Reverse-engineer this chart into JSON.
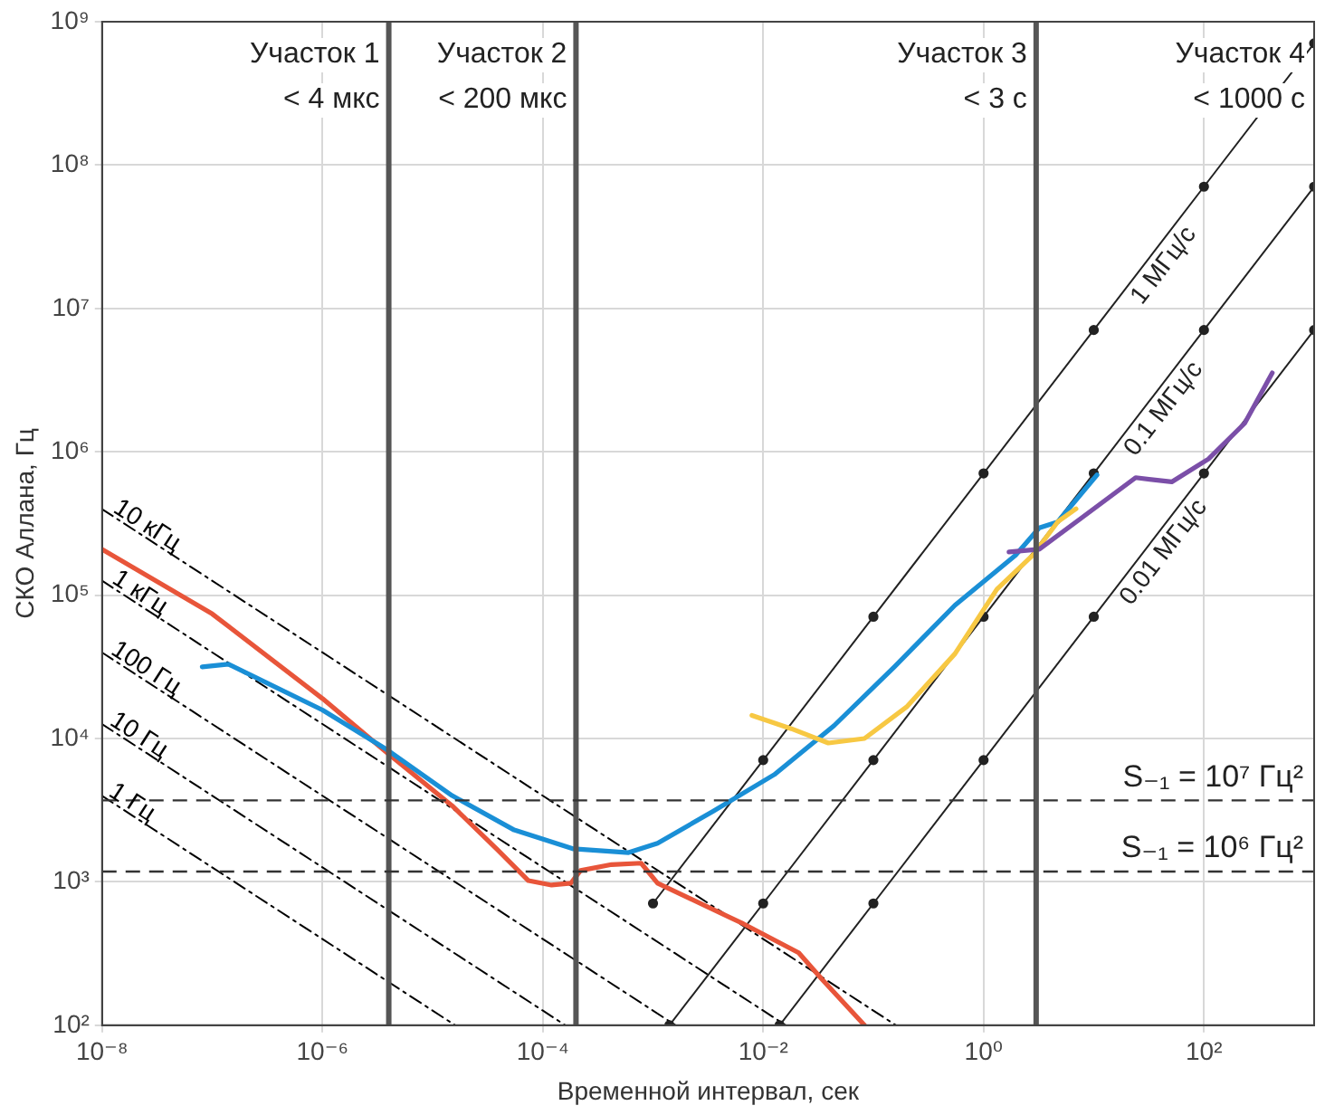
{
  "chart_data": {
    "type": "line",
    "xlabel": "Временной интервал, сек",
    "ylabel": "СКО Аллана, Гц",
    "log": "xy",
    "grid": true,
    "legend": false,
    "xlim": [
      1e-08,
      1000
    ],
    "ylim": [
      100,
      1000000000
    ],
    "xticks": [
      {
        "value": 1e-08,
        "label": "10⁻⁸"
      },
      {
        "value": 1e-06,
        "label": "10⁻⁶"
      },
      {
        "value": 0.0001,
        "label": "10⁻⁴"
      },
      {
        "value": 0.01,
        "label": "10⁻²"
      },
      {
        "value": 1,
        "label": "10⁰"
      },
      {
        "value": 100,
        "label": "10²"
      }
    ],
    "yticks": [
      {
        "value": 100,
        "label": "10²"
      },
      {
        "value": 1000,
        "label": "10³"
      },
      {
        "value": 10000,
        "label": "10⁴"
      },
      {
        "value": 100000,
        "label": "10⁵"
      },
      {
        "value": 1000000,
        "label": "10⁶"
      },
      {
        "value": 10000000,
        "label": "10⁷"
      },
      {
        "value": 100000000,
        "label": "10⁸"
      },
      {
        "value": 1000000000,
        "label": "10⁹"
      }
    ],
    "series": [
      {
        "name": "10 кГц",
        "color": "#000000",
        "line_style": "dashdot",
        "marker": "none",
        "x": [
          1e-08,
          0.16
        ],
        "values": [
          398000,
          100
        ]
      },
      {
        "name": "1 кГц",
        "color": "#000000",
        "line_style": "dashdot",
        "marker": "none",
        "x": [
          1e-08,
          0.016
        ],
        "values": [
          126000,
          100
        ]
      },
      {
        "name": "100 Гц",
        "color": "#000000",
        "line_style": "dashdot",
        "marker": "none",
        "x": [
          1e-08,
          0.0016
        ],
        "values": [
          39800,
          100
        ]
      },
      {
        "name": "10 Гц",
        "color": "#000000",
        "line_style": "dashdot",
        "marker": "none",
        "x": [
          1e-08,
          0.00016
        ],
        "values": [
          12600,
          100
        ]
      },
      {
        "name": "1 Гц",
        "color": "#000000",
        "line_style": "dashdot",
        "marker": "none",
        "x": [
          1e-08,
          1.6e-05
        ],
        "values": [
          3980,
          100
        ]
      },
      {
        "name": "1 МГц/с",
        "color": "#222222",
        "line_style": "solid",
        "marker": "circle",
        "x": [
          0.001,
          0.01,
          0.1,
          1,
          10,
          100,
          1000
        ],
        "values": [
          707,
          7070,
          70700,
          707000,
          7070000,
          70700000,
          707000000
        ]
      },
      {
        "name": "0.1 МГц/с",
        "color": "#222222",
        "line_style": "solid",
        "marker": "circle",
        "x": [
          0.00141,
          0.01,
          0.1,
          1,
          10,
          100,
          1000
        ],
        "values": [
          100,
          707,
          7070,
          70700,
          707000,
          7070000,
          70700000
        ]
      },
      {
        "name": "0.01 МГц/с",
        "color": "#222222",
        "line_style": "solid",
        "marker": "circle",
        "x": [
          0.0141,
          0.1,
          1,
          10,
          100,
          1000
        ],
        "values": [
          100,
          707,
          7070,
          70700,
          707000,
          7070000
        ]
      },
      {
        "color": "#e8553a",
        "line_style": "solid",
        "marker": "none",
        "x": [
          1e-08,
          1e-07,
          1e-06,
          3.9e-06,
          1.5e-05,
          3.8e-05,
          7.4e-05,
          0.00012,
          0.00018,
          0.00022,
          0.00042,
          0.00078,
          0.0011,
          0.0066,
          0.021,
          0.034,
          0.083
        ],
        "values": [
          209000,
          74000,
          19000,
          7900,
          3400,
          1700,
          1020,
          950,
          980,
          1200,
          1320,
          1350,
          980,
          510,
          320,
          210,
          100
        ]
      },
      {
        "color": "#1a8fd6",
        "line_style": "solid",
        "marker": "none",
        "x": [
          8.1e-08,
          1.4e-07,
          1e-06,
          3.9e-06,
          1.5e-05,
          5.5e-05,
          0.00019,
          0.0006,
          0.0011,
          0.0035,
          0.0126,
          0.044,
          0.155,
          0.55,
          1.95,
          3.2,
          4.7,
          10.7
        ],
        "values": [
          31600,
          33000,
          15800,
          8300,
          4000,
          2300,
          1700,
          1600,
          1860,
          3100,
          5600,
          12300,
          31600,
          85000,
          190000,
          295000,
          324000,
          690000
        ]
      },
      {
        "color": "#f7c843",
        "line_style": "solid",
        "marker": "none",
        "x": [
          0.0079,
          0.018,
          0.039,
          0.083,
          0.2,
          0.55,
          1.32,
          2.8,
          4.7,
          6.9
        ],
        "values": [
          14500,
          11700,
          9300,
          10000,
          16600,
          39000,
          110000,
          190000,
          324000,
          400000
        ]
      },
      {
        "color": "#7b4fa8",
        "line_style": "solid",
        "marker": "none",
        "x": [
          1.7,
          3.2,
          7.8,
          24,
          51,
          110,
          234,
          417
        ],
        "values": [
          200000,
          209000,
          347000,
          660000,
          617000,
          891000,
          1580000,
          3550000
        ]
      }
    ],
    "ref_lines": [
      {
        "axis": "x",
        "value": 4e-06,
        "color": "#555555",
        "line_style": "solid"
      },
      {
        "axis": "x",
        "value": 0.0002,
        "color": "#555555",
        "line_style": "solid"
      },
      {
        "axis": "x",
        "value": 3,
        "color": "#555555",
        "line_style": "solid"
      },
      {
        "axis": "y",
        "value": 3700,
        "color": "#333333",
        "line_style": "dashed"
      },
      {
        "axis": "y",
        "value": 1180,
        "color": "#333333",
        "line_style": "dashed"
      }
    ],
    "annotations": [
      "Участок 1",
      "< 4 мкс",
      "Участок 2",
      "< 200 мкс",
      "Участок 3",
      "< 3 с",
      "Участок 4",
      "< 1000 с",
      "S₋₁ = 10⁷ Гц²",
      "S₋₁ = 10⁶ Гц²"
    ]
  }
}
